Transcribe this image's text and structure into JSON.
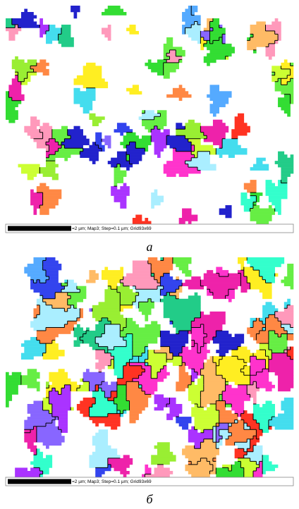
{
  "panels": [
    {
      "caption": "=2 µm; Map3; Step=0.1 µm; Grid93x69",
      "label": "а"
    },
    {
      "caption": "=2 µm; Map3; Step=0.1 µm; Grid93x69",
      "label": "б"
    }
  ]
}
